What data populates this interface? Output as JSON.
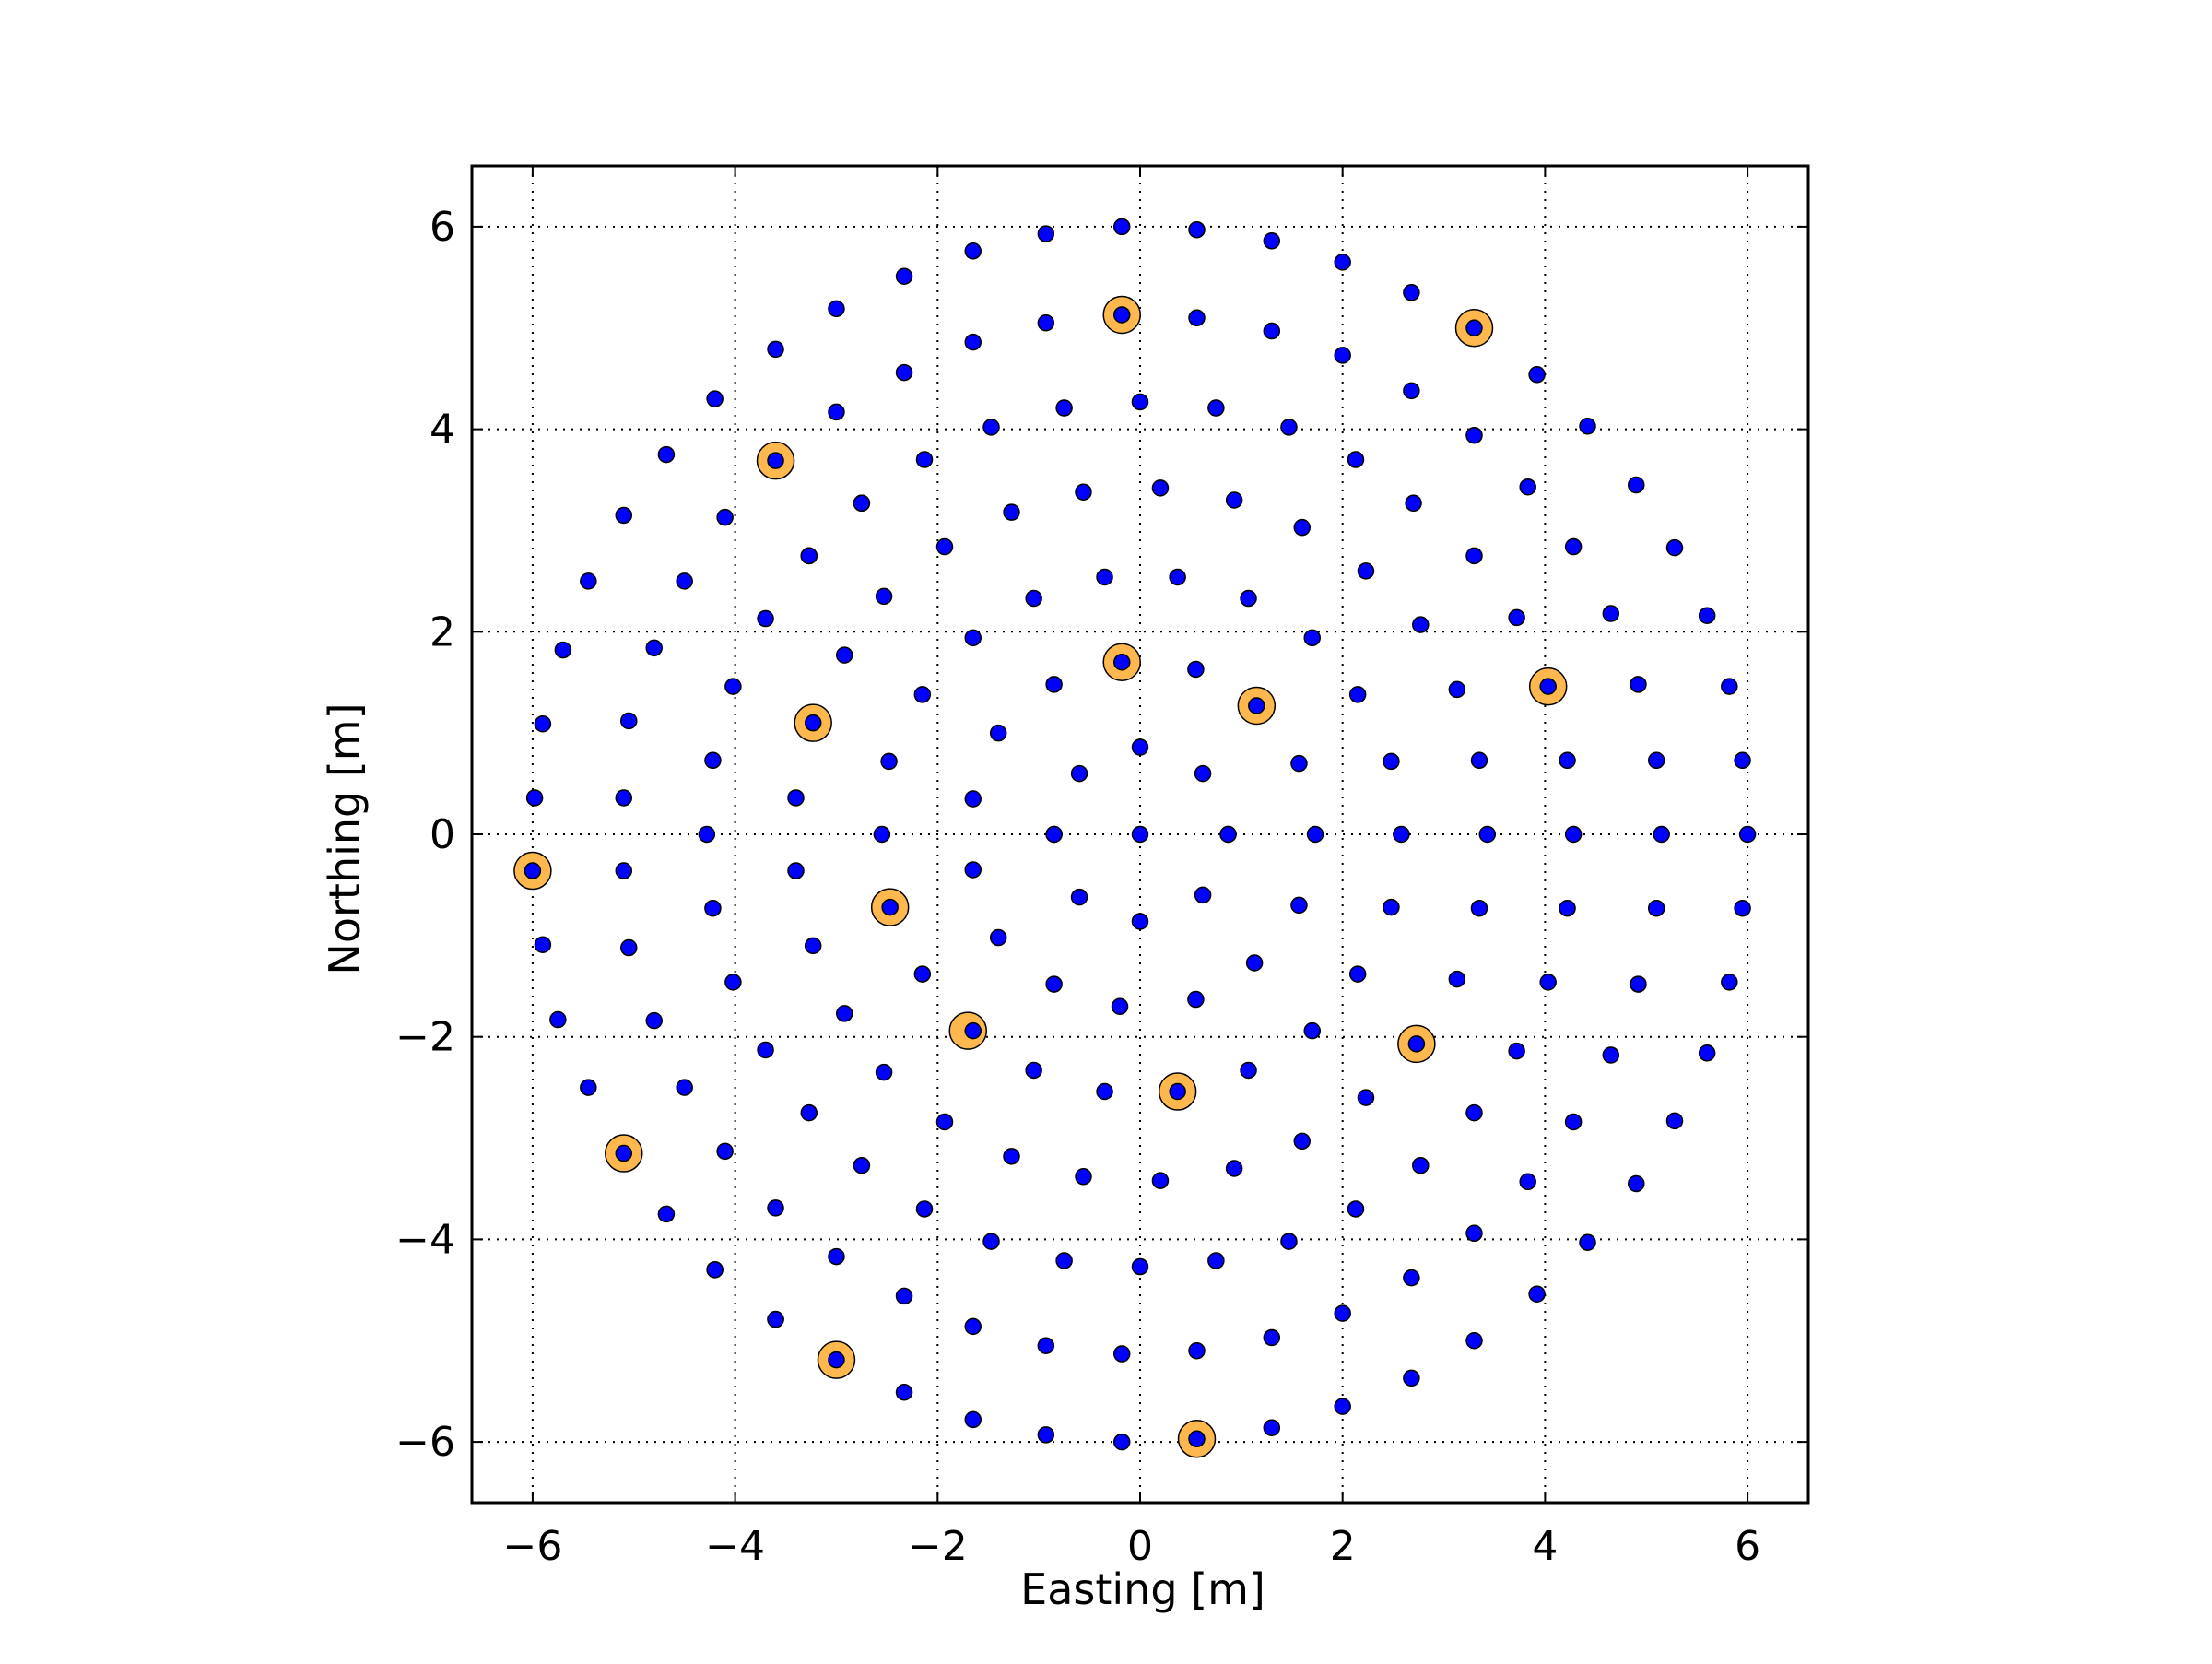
{
  "chart_data": {
    "type": "scatter",
    "title": "",
    "xlabel": "Easting [m]",
    "ylabel": "Northing [m]",
    "xlim": [
      -6.6,
      6.6
    ],
    "ylim": [
      -6.6,
      6.6
    ],
    "xticks": [
      -6,
      -4,
      -2,
      0,
      2,
      4,
      6
    ],
    "yticks": [
      -6,
      -4,
      -2,
      0,
      2,
      4,
      6
    ],
    "tick_labels": [
      "−6",
      "−4",
      "−2",
      "0",
      "2",
      "4",
      "6"
    ],
    "grid": true,
    "legend": "none",
    "colors": {
      "all": "#0000ff",
      "highlight": "#ffb84d",
      "edge": "#000000",
      "grid": "#000000"
    },
    "series": [
      {
        "marker": "small-blue-dot",
        "points": [
          [
            -0.18,
            6.0
          ],
          [
            0.56,
            5.97
          ],
          [
            1.3,
            5.86
          ],
          [
            2.0,
            5.65
          ],
          [
            2.68,
            5.35
          ],
          [
            -0.93,
            5.93
          ],
          [
            -1.65,
            5.76
          ],
          [
            -2.33,
            5.51
          ],
          [
            -3.0,
            5.19
          ],
          [
            -3.6,
            4.79
          ],
          [
            -0.18,
            5.13
          ],
          [
            0.56,
            5.1
          ],
          [
            1.3,
            4.97
          ],
          [
            2.0,
            4.73
          ],
          [
            2.68,
            4.38
          ],
          [
            3.3,
            5.0
          ],
          [
            3.92,
            4.54
          ],
          [
            -0.93,
            5.05
          ],
          [
            -1.65,
            4.86
          ],
          [
            -2.33,
            4.56
          ],
          [
            -3.0,
            4.17
          ],
          [
            -3.6,
            3.69
          ],
          [
            -4.2,
            4.3
          ],
          [
            -4.68,
            3.75
          ],
          [
            0.0,
            4.27
          ],
          [
            0.75,
            4.21
          ],
          [
            1.47,
            4.02
          ],
          [
            2.13,
            3.7
          ],
          [
            2.7,
            3.27
          ],
          [
            3.3,
            3.94
          ],
          [
            3.83,
            3.43
          ],
          [
            4.42,
            4.03
          ],
          [
            4.9,
            3.45
          ],
          [
            5.28,
            2.83
          ],
          [
            5.6,
            2.16
          ],
          [
            5.82,
            1.46
          ],
          [
            5.95,
            0.73
          ],
          [
            6.0,
            0.0
          ],
          [
            -0.75,
            4.21
          ],
          [
            -1.47,
            4.02
          ],
          [
            -2.13,
            3.7
          ],
          [
            -2.75,
            3.27
          ],
          [
            -3.27,
            2.75
          ],
          [
            -3.7,
            2.13
          ],
          [
            -4.02,
            1.46
          ],
          [
            -4.22,
            0.73
          ],
          [
            -4.28,
            0.0
          ],
          [
            -5.1,
            3.15
          ],
          [
            -5.45,
            2.5
          ],
          [
            -5.7,
            1.82
          ],
          [
            -5.9,
            1.09
          ],
          [
            -5.98,
            0.36
          ],
          [
            -6.0,
            -0.36
          ],
          [
            -5.9,
            -1.09
          ],
          [
            -5.75,
            -1.83
          ],
          [
            -5.45,
            -2.5
          ],
          [
            -5.1,
            -3.15
          ],
          [
            -4.68,
            -3.75
          ],
          [
            -4.2,
            -4.3
          ],
          [
            -3.6,
            -4.79
          ],
          [
            -3.0,
            -5.19
          ],
          [
            -2.33,
            -5.51
          ],
          [
            -1.65,
            -5.78
          ],
          [
            -0.93,
            -5.93
          ],
          [
            -0.18,
            -6.0
          ],
          [
            0.56,
            -5.97
          ],
          [
            1.3,
            -5.86
          ],
          [
            2.0,
            -5.65
          ],
          [
            2.68,
            -5.37
          ],
          [
            0.2,
            3.42
          ],
          [
            0.93,
            3.3
          ],
          [
            1.6,
            3.03
          ],
          [
            2.23,
            2.6
          ],
          [
            2.77,
            2.07
          ],
          [
            3.3,
            2.75
          ],
          [
            3.72,
            2.14
          ],
          [
            4.28,
            2.84
          ],
          [
            4.65,
            2.18
          ],
          [
            4.03,
            1.46
          ],
          [
            4.92,
            1.48
          ],
          [
            4.22,
            0.73
          ],
          [
            5.1,
            0.73
          ],
          [
            4.28,
            0.0
          ],
          [
            5.15,
            0.0
          ],
          [
            -0.56,
            3.38
          ],
          [
            -1.27,
            3.18
          ],
          [
            -1.93,
            2.84
          ],
          [
            -2.53,
            2.35
          ],
          [
            -2.92,
            1.77
          ],
          [
            -3.23,
            1.1
          ],
          [
            -3.4,
            0.36
          ],
          [
            -0.35,
            2.54
          ],
          [
            0.37,
            2.54
          ],
          [
            1.07,
            2.33
          ],
          [
            1.7,
            1.94
          ],
          [
            2.15,
            1.38
          ],
          [
            2.48,
            0.72
          ],
          [
            2.58,
            0.0
          ],
          [
            3.13,
            1.43
          ],
          [
            3.35,
            0.73
          ],
          [
            3.43,
            0.0
          ],
          [
            -1.05,
            2.33
          ],
          [
            -1.65,
            1.94
          ],
          [
            -2.15,
            1.38
          ],
          [
            -2.48,
            0.72
          ],
          [
            -2.55,
            0.0
          ],
          [
            -4.8,
            1.84
          ],
          [
            -5.05,
            1.12
          ],
          [
            -5.1,
            0.36
          ],
          [
            -4.5,
            2.5
          ],
          [
            -4.1,
            3.13
          ],
          [
            -3.27,
            2.75
          ],
          [
            -2.75,
            3.27
          ],
          [
            -0.18,
            1.7
          ],
          [
            0.55,
            1.63
          ],
          [
            1.15,
            1.27
          ],
          [
            1.57,
            0.7
          ],
          [
            1.73,
            0.0
          ],
          [
            -0.85,
            1.48
          ],
          [
            -1.4,
            1.0
          ],
          [
            -1.65,
            0.35
          ],
          [
            0.0,
            0.86
          ],
          [
            0.62,
            0.6
          ],
          [
            0.87,
            0.0
          ],
          [
            -0.6,
            0.6
          ],
          [
            -0.85,
            0.0
          ],
          [
            0.0,
            0.0
          ],
          [
            0.0,
            -0.86
          ],
          [
            0.62,
            -0.6
          ],
          [
            0.87,
            0.0
          ],
          [
            -0.6,
            -0.62
          ],
          [
            -0.85,
            0.0
          ],
          [
            -0.2,
            -1.7
          ],
          [
            0.55,
            -1.63
          ],
          [
            1.13,
            -1.27
          ],
          [
            1.57,
            -0.7
          ],
          [
            -0.85,
            -1.48
          ],
          [
            -1.4,
            -1.02
          ],
          [
            -1.65,
            -0.35
          ],
          [
            -1.05,
            -2.33
          ],
          [
            -1.65,
            -1.94
          ],
          [
            -2.15,
            -1.38
          ],
          [
            -2.47,
            -0.72
          ],
          [
            -0.35,
            -2.54
          ],
          [
            0.37,
            -2.54
          ],
          [
            1.07,
            -2.33
          ],
          [
            1.7,
            -1.94
          ],
          [
            2.15,
            -1.38
          ],
          [
            2.48,
            -0.72
          ],
          [
            2.73,
            -2.07
          ],
          [
            3.13,
            -1.43
          ],
          [
            3.35,
            -0.73
          ],
          [
            3.72,
            -2.14
          ],
          [
            4.03,
            -1.46
          ],
          [
            4.22,
            -0.73
          ],
          [
            4.65,
            -2.18
          ],
          [
            4.92,
            -1.48
          ],
          [
            5.1,
            -0.73
          ],
          [
            5.6,
            -2.16
          ],
          [
            5.82,
            -1.46
          ],
          [
            5.95,
            -0.73
          ],
          [
            4.28,
            -2.84
          ],
          [
            5.28,
            -2.83
          ],
          [
            4.9,
            -3.45
          ],
          [
            4.42,
            -4.03
          ],
          [
            3.92,
            -4.54
          ],
          [
            3.3,
            -5.0
          ],
          [
            3.83,
            -3.43
          ],
          [
            3.3,
            -3.94
          ],
          [
            3.3,
            -2.75
          ],
          [
            2.77,
            -3.27
          ],
          [
            2.68,
            -4.38
          ],
          [
            2.0,
            -4.73
          ],
          [
            2.23,
            -2.6
          ],
          [
            2.13,
            -3.7
          ],
          [
            1.47,
            -4.02
          ],
          [
            1.6,
            -3.03
          ],
          [
            1.3,
            -4.97
          ],
          [
            0.93,
            -3.3
          ],
          [
            0.75,
            -4.21
          ],
          [
            0.56,
            -5.1
          ],
          [
            0.2,
            -3.42
          ],
          [
            0.0,
            -4.27
          ],
          [
            -0.18,
            -5.13
          ],
          [
            -0.56,
            -3.38
          ],
          [
            -0.75,
            -4.21
          ],
          [
            -0.93,
            -5.05
          ],
          [
            -1.27,
            -3.18
          ],
          [
            -1.47,
            -4.02
          ],
          [
            -1.65,
            -4.86
          ],
          [
            -1.93,
            -2.84
          ],
          [
            -2.13,
            -3.7
          ],
          [
            -2.33,
            -4.56
          ],
          [
            -2.53,
            -2.35
          ],
          [
            -2.75,
            -3.27
          ],
          [
            -3.0,
            -4.17
          ],
          [
            -2.92,
            -1.77
          ],
          [
            -3.27,
            -2.75
          ],
          [
            -3.6,
            -3.69
          ],
          [
            -3.6,
            -4.79
          ],
          [
            -3.23,
            -1.1
          ],
          [
            -3.4,
            -0.36
          ],
          [
            -3.7,
            -2.13
          ],
          [
            -4.1,
            -3.13
          ],
          [
            -4.02,
            -1.46
          ],
          [
            -4.22,
            -0.73
          ],
          [
            -4.5,
            -2.5
          ],
          [
            -4.8,
            -1.84
          ],
          [
            -5.05,
            -1.12
          ],
          [
            -5.1,
            -0.36
          ],
          [
            -4.2,
            -4.3
          ]
        ]
      },
      {
        "marker": "large-orange-ring",
        "points": [
          [
            -0.18,
            5.13
          ],
          [
            3.3,
            5.0
          ],
          [
            -3.6,
            3.69
          ],
          [
            -0.18,
            1.7
          ],
          [
            1.15,
            1.27
          ],
          [
            4.03,
            1.46
          ],
          [
            -3.23,
            1.1
          ],
          [
            -6.0,
            -0.36
          ],
          [
            -2.47,
            -0.72
          ],
          [
            -1.7,
            -1.94
          ],
          [
            2.73,
            -2.07
          ],
          [
            0.37,
            -2.54
          ],
          [
            -5.1,
            -3.15
          ],
          [
            -3.0,
            -5.19
          ],
          [
            0.56,
            -5.97
          ]
        ]
      }
    ]
  }
}
